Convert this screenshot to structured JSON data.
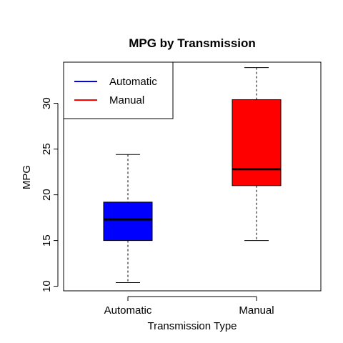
{
  "chart_data": {
    "type": "boxplot",
    "title": "MPG by Transmission",
    "xlabel": "Transmission Type",
    "ylabel": "MPG",
    "ylim": [
      9.5,
      34.5
    ],
    "yticks": [
      10,
      15,
      20,
      25,
      30
    ],
    "grid": false,
    "legend": {
      "placement": "top-left",
      "entries": [
        {
          "label": "Automatic",
          "color": "#0000ff"
        },
        {
          "label": "Manual",
          "color": "#ff0000"
        }
      ]
    },
    "categories": [
      "Automatic",
      "Manual"
    ],
    "boxes": [
      {
        "category": "Automatic",
        "color": "#0000ff",
        "min": 10.4,
        "q1": 15.0,
        "median": 17.3,
        "q3": 19.2,
        "max": 24.4
      },
      {
        "category": "Manual",
        "color": "#ff0000",
        "min": 15.0,
        "q1": 21.0,
        "median": 22.8,
        "q3": 30.4,
        "max": 33.9
      }
    ]
  }
}
